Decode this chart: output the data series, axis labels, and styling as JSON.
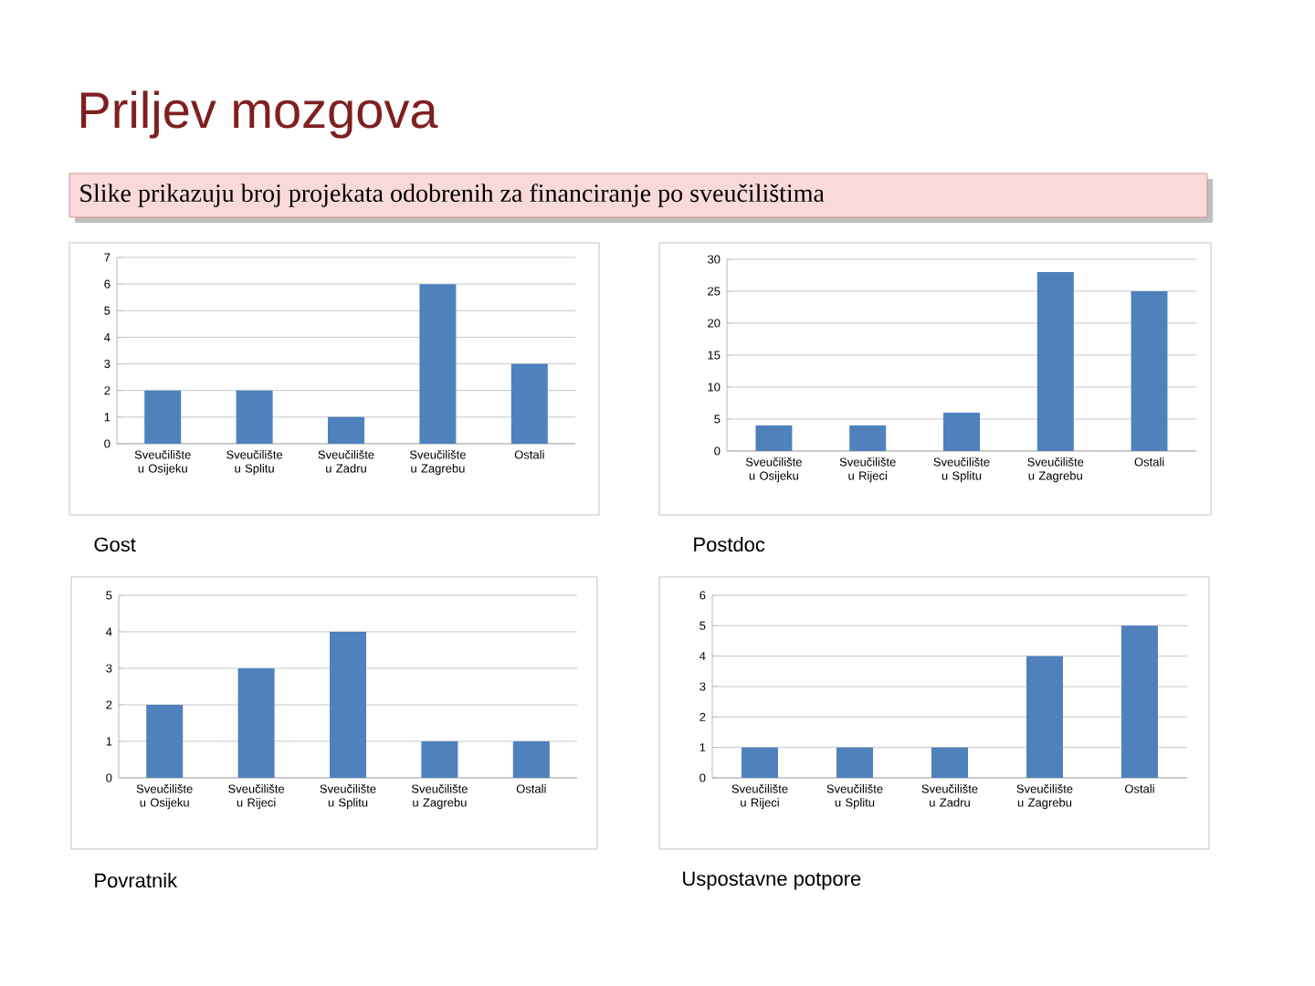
{
  "chart_data": [
    {
      "type": "other",
      "title": "Priljev mozgova",
      "subtitle": "Slike prikazuju broj projekata odobrenih za financiranje po sveučilištima"
    },
    {
      "type": "bar",
      "title": "Gost",
      "categories": [
        "Sveučilište u Osijeku",
        "Sveučilište u Splitu",
        "Sveučilište u Zadru",
        "Sveučilište u Zagrebu",
        "Ostali"
      ],
      "values": [
        2,
        2,
        1,
        6,
        3
      ],
      "color": "#4f81bd",
      "ylim": [
        0,
        7
      ],
      "yticks": [
        0,
        1,
        2,
        3,
        4,
        5,
        6,
        7
      ],
      "grid": "y"
    },
    {
      "type": "bar",
      "title": "Postdoc",
      "categories": [
        "Sveučilište u Osijeku",
        "Sveučilište u Rijeci",
        "Sveučilište u Splitu",
        "Sveučilište u Zagrebu",
        "Ostali"
      ],
      "values": [
        4,
        4,
        6,
        28,
        25
      ],
      "color": "#4f81bd",
      "ylim": [
        0,
        30
      ],
      "yticks": [
        0,
        5,
        10,
        15,
        20,
        25,
        30
      ],
      "grid": "y"
    },
    {
      "type": "bar",
      "title": "Povratnik",
      "categories": [
        "Sveučilište u Osijeku",
        "Sveučilište u Rijeci",
        "Sveučilište u Splitu",
        "Sveučilište u Zagrebu",
        "Ostali"
      ],
      "values": [
        2,
        3,
        4,
        1,
        1
      ],
      "color": "#4f81bd",
      "ylim": [
        0,
        5
      ],
      "yticks": [
        0,
        1,
        2,
        3,
        4,
        5
      ],
      "grid": "y"
    },
    {
      "type": "bar",
      "title": "Uspostavne potpore",
      "categories": [
        "Sveučilište u Rijeci",
        "Sveučilište u Splitu",
        "Sveučilište u Zadru",
        "Sveučilište u Zagrebu",
        "Ostali"
      ],
      "values": [
        1,
        1,
        1,
        4,
        5
      ],
      "color": "#4f81bd",
      "ylim": [
        0,
        6
      ],
      "yticks": [
        0,
        1,
        2,
        3,
        4,
        5,
        6
      ],
      "grid": "y"
    }
  ]
}
